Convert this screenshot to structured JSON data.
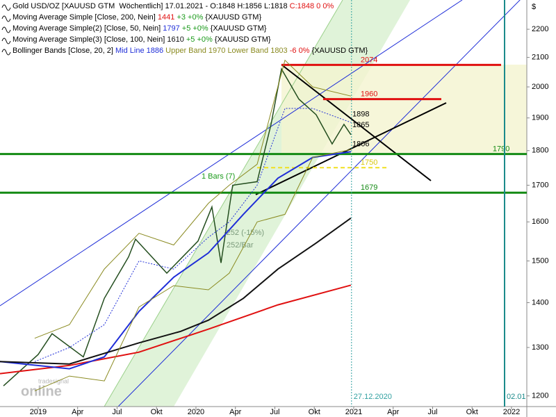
{
  "chart_data": {
    "type": "line",
    "log": true,
    "xlim": [
      2018.758,
      2022.097
    ],
    "ylim": [
      1179,
      2309
    ],
    "y_axis_label": "$",
    "yticks": [
      1200,
      1300,
      1400,
      1500,
      1600,
      1700,
      1800,
      1900,
      2000,
      2100,
      2200
    ],
    "xticks": [
      {
        "value": 2019,
        "label": "2019"
      },
      {
        "value": 2019.25,
        "label": "Apr"
      },
      {
        "value": 2019.5,
        "label": "Jul"
      },
      {
        "value": 2019.75,
        "label": "Okt"
      },
      {
        "value": 2020,
        "label": "2020"
      },
      {
        "value": 2020.25,
        "label": "Apr"
      },
      {
        "value": 2020.5,
        "label": "Jul"
      },
      {
        "value": 2020.75,
        "label": "Okt"
      },
      {
        "value": 2021,
        "label": "2021"
      },
      {
        "value": 2021.25,
        "label": "Apr"
      },
      {
        "value": 2021.5,
        "label": "Jul"
      },
      {
        "value": 2021.75,
        "label": "Okt"
      },
      {
        "value": 2022,
        "label": "2022"
      }
    ],
    "series": [
      {
        "name": "Gold USD/OZ [XAUUSD GTM  Wöchentlich]",
        "color": "#234d1e",
        "legend": [
          {
            "text": " 17.01.2021 - O:1848 H:1856 L:1818 ",
            "color": "#000000"
          },
          {
            "text": "C:1848 0 0%",
            "color": "#e01010"
          }
        ],
        "x": [
          2018.78,
          2019,
          2019.088,
          2019.286,
          2019.419,
          2019.573,
          2019.617,
          2019.815,
          2020.013,
          2020.101,
          2020.159,
          2020.233,
          2020.388,
          2020.476,
          2020.542,
          2020.652,
          2020.762,
          2020.863,
          2020.938,
          2020.982
        ],
        "values": [
          1220,
          1285,
          1330,
          1280,
          1410,
          1510,
          1555,
          1470,
          1550,
          1640,
          1495,
          1700,
          1710,
          1880,
          2060,
          1960,
          1910,
          1820,
          1880,
          1848
        ]
      },
      {
        "name": "Moving Average Simple [Close, 200, Nein]",
        "color": "#e01010",
        "legend": [
          {
            "text": " 1441",
            "color": "#e01010"
          },
          {
            "text": " +3 +0%",
            "color": "#1a9a1a"
          },
          {
            "text": " {XAUUSD GTM}",
            "color": "#000000"
          }
        ],
        "x": [
          2018.758,
          2019.198,
          2019.639,
          2020.079,
          2020.52,
          2020.982
        ],
        "values": [
          1245,
          1262,
          1290,
          1340,
          1395,
          1441
        ]
      },
      {
        "name": "Moving Average Simple(2) [Close, 50, Nein]",
        "color": "#1f2ed8",
        "legend": [
          {
            "text": " 1797",
            "color": "#1f2ed8"
          },
          {
            "text": " +5 +0%",
            "color": "#1a9a1a"
          },
          {
            "text": " {XAUUSD GTM}",
            "color": "#000000"
          }
        ],
        "x": [
          2018.758,
          2019.198,
          2019.419,
          2019.639,
          2019.859,
          2020.079,
          2020.3,
          2020.52,
          2020.74,
          2020.982
        ],
        "values": [
          1270,
          1255,
          1280,
          1380,
          1460,
          1520,
          1620,
          1720,
          1780,
          1797
        ]
      },
      {
        "name": "Moving Average Simple(3) [Close, 100, Nein]",
        "color": "#111111",
        "legend": [
          {
            "text": " 1610",
            "color": "#111111"
          },
          {
            "text": " +5 +0%",
            "color": "#1a9a1a"
          },
          {
            "text": " {XAUUSD GTM}",
            "color": "#000000"
          }
        ],
        "x": [
          2018.758,
          2019.198,
          2019.639,
          2019.903,
          2020.079,
          2020.3,
          2020.52,
          2020.762,
          2020.982
        ],
        "values": [
          1270,
          1265,
          1310,
          1335,
          1360,
          1410,
          1480,
          1545,
          1610
        ]
      },
      {
        "name": "Bollinger Bands [Close, 20, 2]",
        "color": "#1f2ed8",
        "band_color": "#8a8a20",
        "legend": [
          {
            "text": " Mid Line 1886",
            "color": "#1f2ed8"
          },
          {
            "text": " Upper Band 1970 Lower Band 1803",
            "color": "#8a8a20"
          },
          {
            "text": " -6 0%",
            "color": "#e01010"
          },
          {
            "text": " {XAUUSD GTM}",
            "color": "#000000"
          }
        ],
        "x": [
          2018.978,
          2019.198,
          2019.419,
          2019.639,
          2019.859,
          2020.079,
          2020.211,
          2020.388,
          2020.564,
          2020.74,
          2020.982
        ],
        "values": [
          1270,
          1300,
          1350,
          1500,
          1480,
          1560,
          1600,
          1700,
          1930,
          1930,
          1886
        ],
        "upper": [
          1320,
          1350,
          1480,
          1570,
          1540,
          1650,
          1700,
          1760,
          2090,
          2000,
          1970
        ],
        "lower": [
          1210,
          1240,
          1230,
          1390,
          1440,
          1430,
          1470,
          1600,
          1620,
          1780,
          1803
        ]
      }
    ],
    "levels": [
      {
        "value": 2074,
        "color": "#e01010",
        "x": [
          2020.542,
          2021.934
        ],
        "label_at": 2020.982
      },
      {
        "value": 1960,
        "color": "#e01010",
        "x": [
          2020.806,
          2021.555
        ],
        "label_at": 2020.982
      },
      {
        "value": 1790,
        "color": "#138a13",
        "x": [
          2018.758,
          2022.097
        ],
        "label_at": 2021.819
      },
      {
        "value": 1679,
        "color": "#138a13",
        "x": [
          2018.758,
          2022.097
        ],
        "label_at": 2020.982
      },
      {
        "value": 1750,
        "color": "#f0e020",
        "x": [
          2020.388,
          2021.22
        ],
        "label_at": 2020.982
      }
    ],
    "price_labels": [
      1898,
      1865,
      1806
    ],
    "verticals": [
      {
        "x": 2020.986,
        "label": "27.12.2020",
        "color": "#30a0a0"
      },
      {
        "x": 2021.956,
        "label": "02.01",
        "color": "#1a8a8a"
      }
    ],
    "annotations": [
      "1 Bars (7)",
      "-252 (-15%)",
      "252/Bar"
    ],
    "watermark": [
      "tradesignal",
      "online"
    ]
  }
}
